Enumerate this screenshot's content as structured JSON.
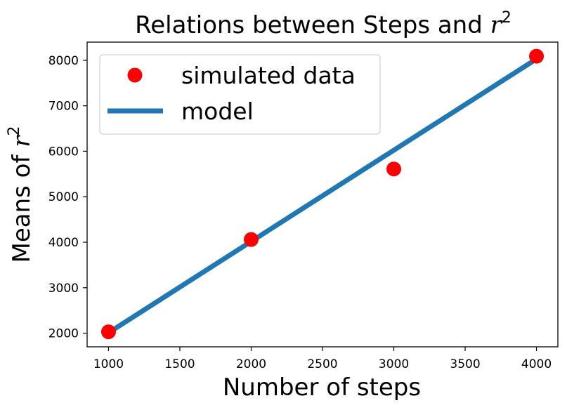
{
  "chart_data": {
    "type": "line",
    "title_prefix": "Relations between Steps and ",
    "title_var": "r",
    "title_exp": "2",
    "xlabel": "Number of steps",
    "ylabel_prefix": "Means of ",
    "ylabel_var": "r",
    "ylabel_exp": "2",
    "xlim": [
      850,
      4150
    ],
    "ylim": [
      1700,
      8400
    ],
    "xticks": [
      1000,
      1500,
      2000,
      2500,
      3000,
      3500,
      4000
    ],
    "yticks": [
      2000,
      3000,
      4000,
      5000,
      6000,
      7000,
      8000
    ],
    "grid": false,
    "legend_position": "upper-left",
    "series": [
      {
        "name": "simulated data",
        "kind": "scatter",
        "color": "#ff0000",
        "x": [
          1000,
          2000,
          3000,
          4000
        ],
        "y": [
          2030,
          4060,
          5610,
          8090
        ]
      },
      {
        "name": "model",
        "kind": "line",
        "color": "#1f77b4",
        "x": [
          1000,
          4000
        ],
        "y": [
          2010,
          8030
        ]
      }
    ]
  }
}
